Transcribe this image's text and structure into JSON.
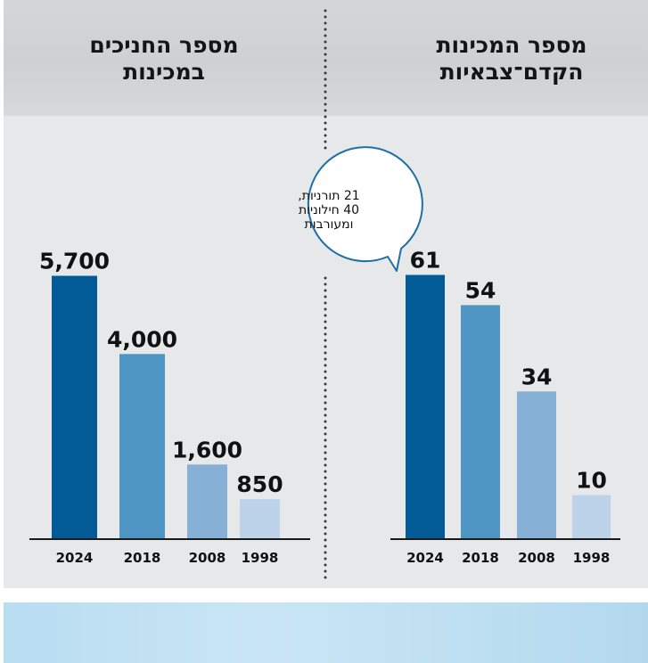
{
  "colors": {
    "bar_2024": "#025b96",
    "bar_2018": "#4f95c3",
    "bar_2008": "#86b0d6",
    "bar_1998": "#bdd3ea",
    "axis": "#1a1a1a",
    "text": "#111111",
    "bubble_border": "#1e6fa3"
  },
  "chart_data": [
    {
      "type": "bar",
      "title_line1": "מספר החניכים",
      "title_line2": "במכינות",
      "categories": [
        "2024",
        "2018",
        "2008",
        "1998"
      ],
      "values": [
        5700,
        4000,
        1600,
        850
      ],
      "value_labels": [
        "5,700",
        "4,000",
        "1,600",
        "850"
      ],
      "ylim": [
        0,
        6000
      ],
      "xlabel": "",
      "ylabel": "",
      "grid": false
    },
    {
      "type": "bar",
      "title_line1": "מספר המכינות",
      "title_line2": "הקדם־צבאיות",
      "categories": [
        "2024",
        "2018",
        "2008",
        "1998"
      ],
      "values": [
        61,
        54,
        34,
        10
      ],
      "value_labels": [
        "61",
        "54",
        "34",
        "10"
      ],
      "ylim": [
        0,
        64
      ],
      "xlabel": "",
      "ylabel": "",
      "grid": false,
      "annotation": {
        "line1": "21 תורניות,",
        "line2": "40 חילוניות",
        "line3": "ומעורבות"
      }
    }
  ]
}
